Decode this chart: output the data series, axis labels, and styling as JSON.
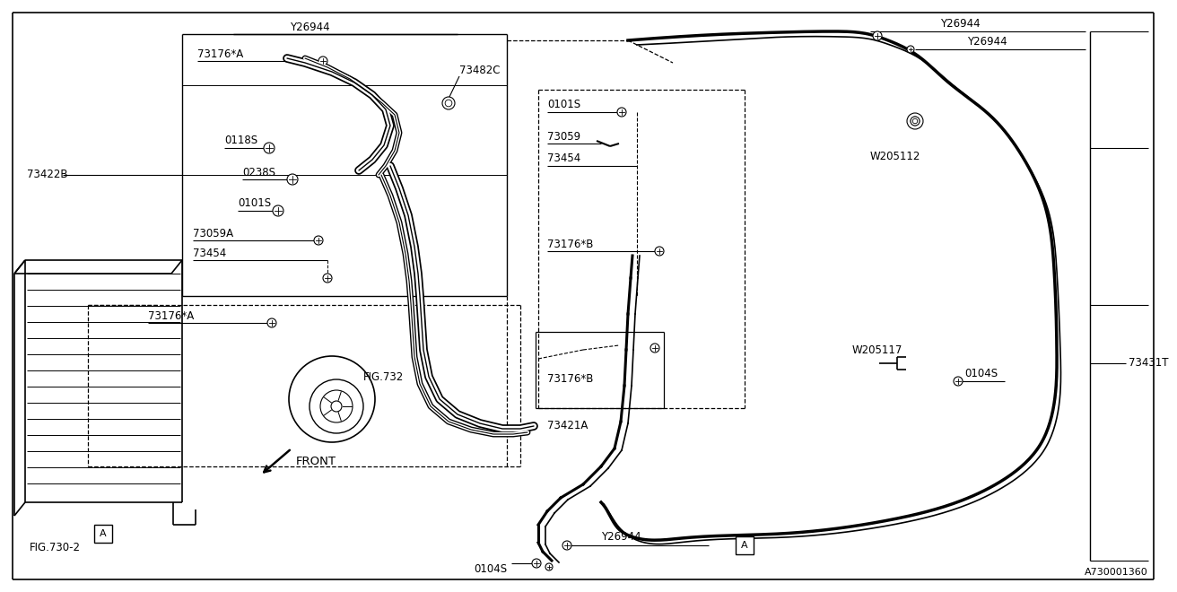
{
  "background_color": "#ffffff",
  "fig_id": "A730001360",
  "labels": {
    "Y26944_top": "Y26944",
    "73176A_top": "73176*A",
    "73482C": "73482C",
    "73422B": "73422B",
    "0118S": "0118S",
    "0238S": "0238S",
    "0101S_left": "0101S",
    "73059A": "73059A",
    "73454_left": "73454",
    "73176A_bot": "73176*A",
    "FIG732": "FIG.732",
    "FIG730": "FIG.730-2",
    "FRONT": "FRONT",
    "Y26944_top2": "Y26944",
    "Y26944_top3": "Y26944",
    "0101S_right": "0101S",
    "73059_right": "73059",
    "73454_right": "73454",
    "73176B_top": "73176*B",
    "W205112": "W205112",
    "73431T": "73431T",
    "W205117": "W205117",
    "0104S_right": "0104S",
    "73176B_bot": "73176*B",
    "73421A": "73421A",
    "Y26944_bot": "Y26944",
    "0104S_bot": "0104S",
    "A_left": "A",
    "A_right": "A"
  }
}
